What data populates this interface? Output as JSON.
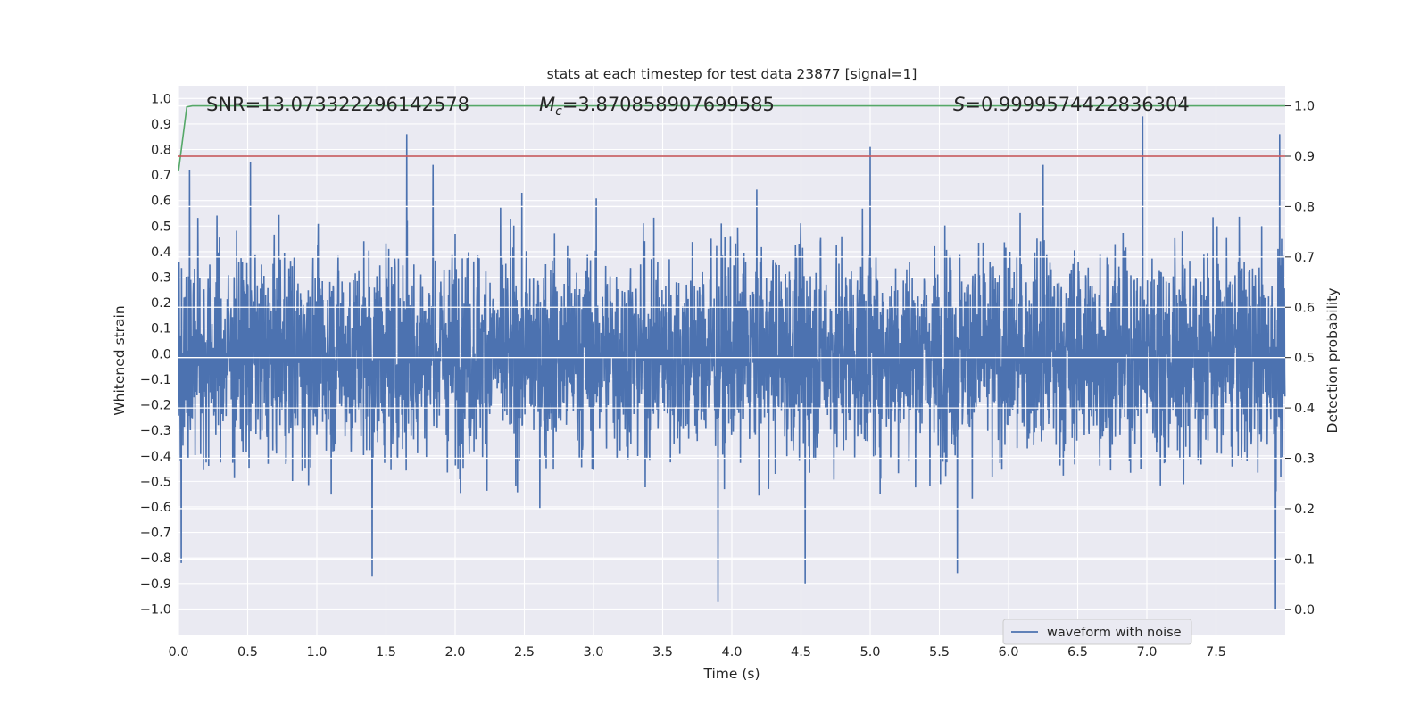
{
  "chart_data": {
    "type": "line",
    "title": "stats at each timestep for test data 23877 [signal=1]",
    "xlabel": "Time (s)",
    "ylabel": "Whitened strain",
    "y2label": "Detection probability",
    "xlim": [
      0.0,
      8.0
    ],
    "ylim": [
      -1.1,
      1.05
    ],
    "y2lim": [
      -0.05,
      1.04
    ],
    "xticks": [
      "0.0",
      "0.5",
      "1.0",
      "1.5",
      "2.0",
      "2.5",
      "3.0",
      "3.5",
      "4.0",
      "4.5",
      "5.0",
      "5.5",
      "6.0",
      "6.5",
      "7.0",
      "7.5"
    ],
    "xtick_values": [
      0.0,
      0.5,
      1.0,
      1.5,
      2.0,
      2.5,
      3.0,
      3.5,
      4.0,
      4.5,
      5.0,
      5.5,
      6.0,
      6.5,
      7.0,
      7.5
    ],
    "yticks": [
      "1.0",
      "0.9",
      "0.8",
      "0.7",
      "0.6",
      "0.5",
      "0.4",
      "0.3",
      "0.2",
      "0.1",
      "0.0",
      "−0.1",
      "−0.2",
      "−0.3",
      "−0.4",
      "−0.5",
      "−0.6",
      "−0.7",
      "−0.8",
      "−0.9",
      "−1.0"
    ],
    "ytick_values": [
      1.0,
      0.9,
      0.8,
      0.7,
      0.6,
      0.5,
      0.4,
      0.3,
      0.2,
      0.1,
      0.0,
      -0.1,
      -0.2,
      -0.3,
      -0.4,
      -0.5,
      -0.6,
      -0.7,
      -0.8,
      -0.9,
      -1.0
    ],
    "y2ticks": [
      "1.0",
      "0.9",
      "0.8",
      "0.7",
      "0.6",
      "0.5",
      "0.4",
      "0.3",
      "0.2",
      "0.1",
      "0.0"
    ],
    "y2tick_values": [
      1.0,
      0.9,
      0.8,
      0.7,
      0.6,
      0.5,
      0.4,
      0.3,
      0.2,
      0.1,
      0.0
    ],
    "series": [
      {
        "name": "waveform with noise",
        "axis": "left",
        "color": "#4c72b0",
        "note": "dense noisy whitened strain, approx. range -1.0 to 0.93",
        "peaks": [
          {
            "x": 0.02,
            "y": -0.82
          },
          {
            "x": 0.08,
            "y": 0.72
          },
          {
            "x": 0.52,
            "y": 0.75
          },
          {
            "x": 1.4,
            "y": -0.87
          },
          {
            "x": 1.65,
            "y": 0.86
          },
          {
            "x": 1.84,
            "y": 0.74
          },
          {
            "x": 3.9,
            "y": -0.97
          },
          {
            "x": 4.53,
            "y": -0.9
          },
          {
            "x": 5.0,
            "y": 0.81
          },
          {
            "x": 5.63,
            "y": -0.86
          },
          {
            "x": 6.25,
            "y": 0.74
          },
          {
            "x": 6.97,
            "y": 0.93
          },
          {
            "x": 7.93,
            "y": -1.0
          },
          {
            "x": 7.96,
            "y": 0.86
          }
        ]
      },
      {
        "name": "detection probability",
        "axis": "right",
        "color": "#55a868",
        "x": [
          0.0,
          0.06,
          0.1,
          0.15,
          8.0
        ],
        "y": [
          0.87,
          0.998,
          1.0,
          1.0,
          1.0
        ]
      },
      {
        "name": "threshold",
        "axis": "right",
        "color": "#c44e52",
        "x": [
          0.0,
          8.0
        ],
        "y": [
          0.9,
          0.9
        ]
      }
    ],
    "annotations": {
      "snr": "SNR=13.073322296142578",
      "mc_symbol": "M",
      "mc_sub": "c",
      "mc_value": "=3.870858907699585",
      "s_symbol": "S",
      "s_value": "=0.9999574422836304"
    },
    "legend": {
      "position": "lower-right",
      "entries": [
        "waveform with noise"
      ]
    },
    "grid": true,
    "colors": {
      "background": "#eaeaf2",
      "grid": "#ffffff",
      "waveform": "#4c72b0",
      "probability": "#55a868",
      "threshold": "#c44e52"
    }
  }
}
